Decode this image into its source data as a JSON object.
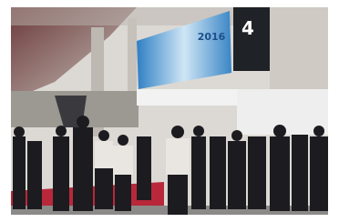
{
  "sign": {
    "number": "4"
  },
  "banner": {
    "year": "2016"
  }
}
